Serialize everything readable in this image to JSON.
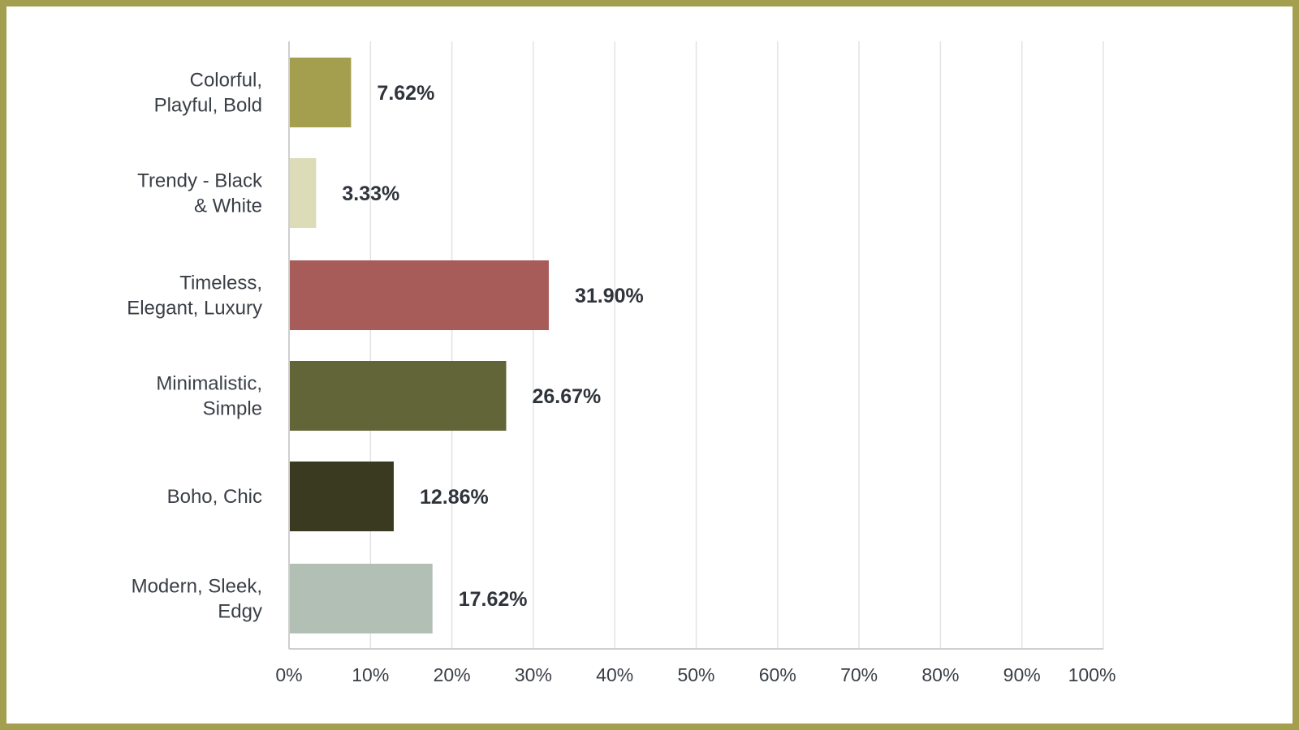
{
  "chart_data": {
    "type": "bar",
    "orientation": "horizontal",
    "categories": [
      [
        "Colorful,",
        "Playful, Bold"
      ],
      [
        "Trendy - Black",
        "& White"
      ],
      [
        "Timeless,",
        "Elegant, Luxury"
      ],
      [
        "Minimalistic,",
        "Simple"
      ],
      [
        "Boho, Chic"
      ],
      [
        "Modern, Sleek,",
        "Edgy"
      ]
    ],
    "values": [
      7.62,
      3.33,
      31.9,
      26.67,
      12.86,
      17.62
    ],
    "value_labels": [
      "7.62%",
      "3.33%",
      "31.90%",
      "26.67%",
      "12.86%",
      "17.62%"
    ],
    "colors": [
      "#a39f4e",
      "#dcdcb9",
      "#a85c5a",
      "#626538",
      "#3a3a21",
      "#b2bfb4"
    ],
    "xlim": [
      0,
      100
    ],
    "xticks": [
      0,
      10,
      20,
      30,
      40,
      50,
      60,
      70,
      80,
      90,
      100
    ],
    "xtick_labels": [
      "0%",
      "10%",
      "20%",
      "30%",
      "40%",
      "50%",
      "60%",
      "70%",
      "80%",
      "90%",
      "100%"
    ],
    "grid": true,
    "title": "",
    "xlabel": "",
    "ylabel": ""
  },
  "frame_color": "#a39f4e"
}
